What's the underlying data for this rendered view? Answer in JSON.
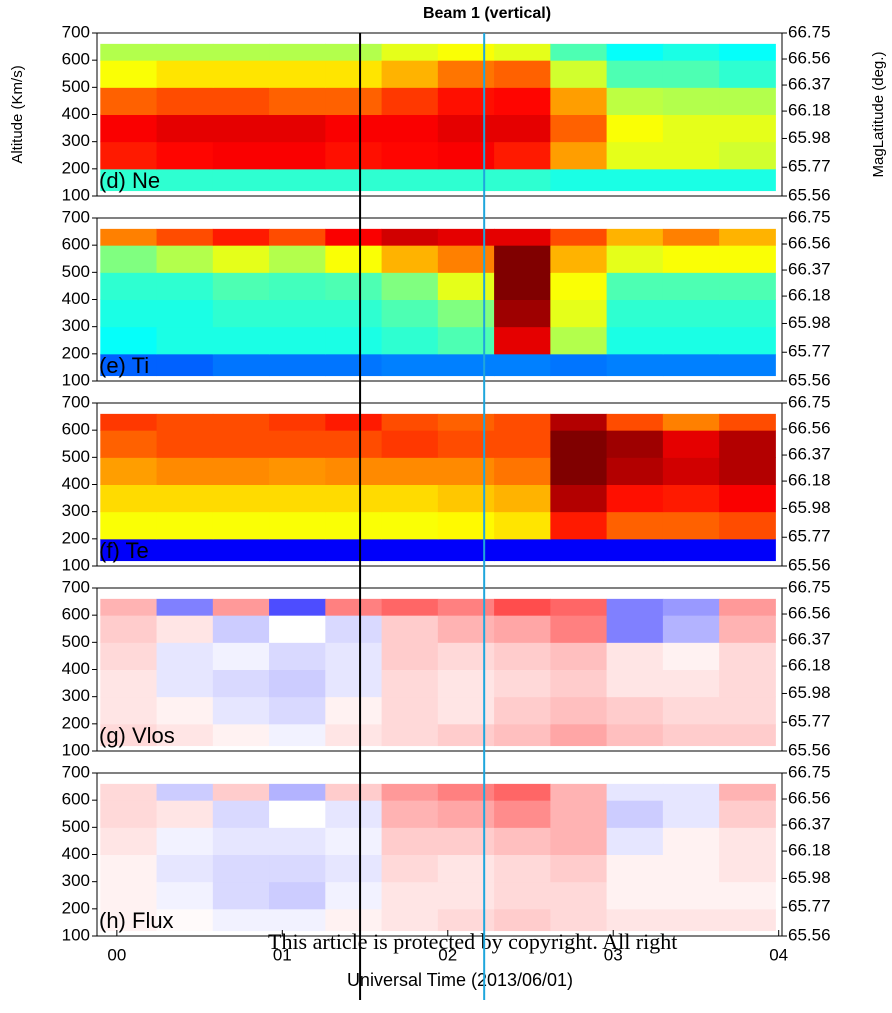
{
  "chart_data": [
    {
      "type": "heatmap",
      "title": "Beam 1 (vertical)",
      "label": "(d) Ne",
      "ylabel": "Altitude (Km/s)",
      "y2label": "MagLatitude (deg.)",
      "colormap": "jet",
      "zlim": [
        0,
        1
      ],
      "ylim": [
        100,
        700
      ],
      "yticks": [
        100,
        200,
        300,
        400,
        500,
        600,
        700
      ],
      "y2lim": [
        65.56,
        66.75
      ],
      "y2ticks": [
        65.56,
        65.77,
        65.98,
        66.18,
        66.37,
        66.56,
        66.75
      ],
      "xlim": [
        -0.12,
        4.02
      ],
      "xbins": [
        -0.1,
        0.24,
        0.58,
        0.92,
        1.26,
        1.6,
        1.94,
        2.28,
        2.62,
        2.96,
        3.3,
        3.64,
        3.98
      ],
      "ybins": [
        120,
        200,
        300,
        400,
        500,
        600,
        660
      ],
      "vlines": [
        {
          "x": 1.47,
          "color": "#000000"
        },
        {
          "x": 2.22,
          "color": "#1fa6dc"
        }
      ],
      "z": [
        [
          0.42,
          0.42,
          0.42,
          0.42,
          0.42,
          0.42,
          0.42,
          0.42,
          0.4,
          0.4,
          0.4,
          0.4
        ],
        [
          0.85,
          0.87,
          0.88,
          0.88,
          0.86,
          0.87,
          0.88,
          0.85,
          0.72,
          0.6,
          0.6,
          0.58
        ],
        [
          0.88,
          0.9,
          0.9,
          0.9,
          0.88,
          0.88,
          0.9,
          0.9,
          0.78,
          0.62,
          0.6,
          0.6
        ],
        [
          0.78,
          0.8,
          0.8,
          0.78,
          0.78,
          0.82,
          0.86,
          0.87,
          0.72,
          0.56,
          0.55,
          0.55
        ],
        [
          0.62,
          0.65,
          0.65,
          0.65,
          0.65,
          0.7,
          0.76,
          0.78,
          0.58,
          0.45,
          0.45,
          0.42
        ],
        [
          0.55,
          0.55,
          0.55,
          0.55,
          0.55,
          0.6,
          0.62,
          0.6,
          0.45,
          0.38,
          0.4,
          0.38
        ]
      ]
    },
    {
      "type": "heatmap",
      "label": "(e) Ti",
      "colormap": "jet",
      "zlim": [
        0,
        1
      ],
      "ylim": [
        100,
        700
      ],
      "yticks": [
        100,
        200,
        300,
        400,
        500,
        600,
        700
      ],
      "y2lim": [
        65.56,
        66.75
      ],
      "y2ticks": [
        65.56,
        65.77,
        65.98,
        66.18,
        66.37,
        66.56,
        66.75
      ],
      "xlim": [
        -0.12,
        4.02
      ],
      "xbins": [
        -0.1,
        0.24,
        0.58,
        0.92,
        1.26,
        1.6,
        1.94,
        2.28,
        2.62,
        2.96,
        3.3,
        3.64,
        3.98
      ],
      "ybins": [
        120,
        200,
        300,
        400,
        500,
        600,
        660
      ],
      "z": [
        [
          0.22,
          0.22,
          0.24,
          0.24,
          0.24,
          0.25,
          0.25,
          0.25,
          0.24,
          0.25,
          0.25,
          0.25
        ],
        [
          0.38,
          0.4,
          0.4,
          0.4,
          0.4,
          0.42,
          0.45,
          0.9,
          0.55,
          0.4,
          0.4,
          0.4
        ],
        [
          0.4,
          0.4,
          0.42,
          0.42,
          0.42,
          0.45,
          0.5,
          0.97,
          0.6,
          0.42,
          0.42,
          0.42
        ],
        [
          0.42,
          0.42,
          0.45,
          0.44,
          0.45,
          0.5,
          0.6,
          1.0,
          0.62,
          0.45,
          0.45,
          0.45
        ],
        [
          0.5,
          0.55,
          0.6,
          0.55,
          0.62,
          0.7,
          0.75,
          1.0,
          0.7,
          0.6,
          0.62,
          0.62
        ],
        [
          0.75,
          0.8,
          0.85,
          0.8,
          0.88,
          0.92,
          0.9,
          0.9,
          0.8,
          0.7,
          0.75,
          0.7
        ]
      ]
    },
    {
      "type": "heatmap",
      "label": "(f) Te",
      "colormap": "jet",
      "zlim": [
        0,
        1
      ],
      "ylim": [
        100,
        700
      ],
      "yticks": [
        100,
        200,
        300,
        400,
        500,
        600,
        700
      ],
      "y2lim": [
        65.56,
        66.75
      ],
      "y2ticks": [
        65.56,
        65.77,
        65.98,
        66.18,
        66.37,
        66.56,
        66.75
      ],
      "xlim": [
        -0.12,
        4.02
      ],
      "xbins": [
        -0.1,
        0.24,
        0.58,
        0.92,
        1.26,
        1.6,
        1.94,
        2.28,
        2.62,
        2.96,
        3.3,
        3.64,
        3.98
      ],
      "ybins": [
        120,
        200,
        300,
        400,
        500,
        600,
        660
      ],
      "z": [
        [
          0.12,
          0.12,
          0.12,
          0.12,
          0.12,
          0.12,
          0.12,
          0.12,
          0.12,
          0.12,
          0.12,
          0.12
        ],
        [
          0.62,
          0.62,
          0.62,
          0.62,
          0.62,
          0.62,
          0.63,
          0.65,
          0.85,
          0.78,
          0.78,
          0.8
        ],
        [
          0.66,
          0.66,
          0.66,
          0.66,
          0.66,
          0.66,
          0.68,
          0.7,
          0.95,
          0.86,
          0.85,
          0.88
        ],
        [
          0.72,
          0.74,
          0.74,
          0.73,
          0.74,
          0.74,
          0.74,
          0.76,
          1.0,
          0.95,
          0.92,
          0.95
        ],
        [
          0.78,
          0.8,
          0.8,
          0.8,
          0.8,
          0.82,
          0.8,
          0.8,
          1.0,
          0.97,
          0.9,
          0.95
        ],
        [
          0.82,
          0.8,
          0.8,
          0.82,
          0.85,
          0.8,
          0.78,
          0.8,
          0.95,
          0.8,
          0.75,
          0.8
        ]
      ]
    },
    {
      "type": "heatmap",
      "label": "(g) Vlos",
      "colormap": "bwr",
      "zlim": [
        -1,
        1
      ],
      "ylim": [
        100,
        700
      ],
      "yticks": [
        100,
        200,
        300,
        400,
        500,
        600,
        700
      ],
      "y2lim": [
        65.56,
        66.75
      ],
      "y2ticks": [
        65.56,
        65.77,
        65.98,
        66.18,
        66.37,
        66.56,
        66.75
      ],
      "xlim": [
        -0.12,
        4.02
      ],
      "xbins": [
        -0.1,
        0.24,
        0.58,
        0.92,
        1.26,
        1.6,
        1.94,
        2.28,
        2.62,
        2.96,
        3.3,
        3.64,
        3.98
      ],
      "ybins": [
        120,
        200,
        300,
        400,
        500,
        600,
        660
      ],
      "z": [
        [
          0.15,
          0.1,
          0.05,
          -0.05,
          0.1,
          0.15,
          0.2,
          0.25,
          0.35,
          0.25,
          0.2,
          0.2
        ],
        [
          0.1,
          0.05,
          -0.1,
          -0.15,
          0.05,
          0.15,
          0.1,
          0.2,
          0.25,
          0.2,
          0.15,
          0.15
        ],
        [
          0.1,
          -0.1,
          -0.15,
          -0.2,
          -0.1,
          0.15,
          0.1,
          0.15,
          0.2,
          0.1,
          0.1,
          0.15
        ],
        [
          0.15,
          -0.1,
          -0.05,
          -0.15,
          -0.1,
          0.2,
          0.15,
          0.2,
          0.25,
          0.1,
          0.05,
          0.15
        ],
        [
          0.2,
          0.1,
          -0.2,
          0,
          -0.15,
          0.2,
          0.3,
          0.35,
          0.5,
          -0.5,
          -0.3,
          0.3
        ],
        [
          0.3,
          -0.5,
          0.4,
          -0.7,
          0.5,
          0.6,
          0.5,
          0.7,
          0.6,
          -0.5,
          -0.4,
          0.4
        ]
      ]
    },
    {
      "type": "heatmap",
      "label": "(h) Flux",
      "colormap": "bwr",
      "zlim": [
        -1,
        1
      ],
      "ylim": [
        100,
        700
      ],
      "yticks": [
        100,
        200,
        300,
        400,
        500,
        600,
        700
      ],
      "y2lim": [
        65.56,
        66.75
      ],
      "y2ticks": [
        65.56,
        65.77,
        65.98,
        66.18,
        66.37,
        66.56,
        66.75
      ],
      "xlim": [
        -0.12,
        4.02
      ],
      "xbins": [
        -0.1,
        0.24,
        0.58,
        0.92,
        1.26,
        1.6,
        1.94,
        2.28,
        2.62,
        2.96,
        3.3,
        3.64,
        3.98
      ],
      "ybins": [
        120,
        200,
        300,
        400,
        500,
        600,
        660
      ],
      "xlabel": "Universal Time (2013/06/01)",
      "watermark": "This article is protected by copyright. All right",
      "xticks": [
        {
          "value": 0,
          "label": "00"
        },
        {
          "value": 1,
          "label": "01"
        },
        {
          "value": 2,
          "label": "02"
        },
        {
          "value": 3,
          "label": "03"
        },
        {
          "value": 4,
          "label": "04"
        }
      ],
      "z": [
        [
          0.05,
          0.02,
          -0.05,
          -0.05,
          0.05,
          0.1,
          0.15,
          0.2,
          0.15,
          0.1,
          0.1,
          0.1
        ],
        [
          0.05,
          -0.05,
          -0.15,
          -0.2,
          -0.05,
          0.1,
          0.1,
          0.15,
          0.15,
          0.05,
          0.05,
          0.05
        ],
        [
          0.05,
          -0.1,
          -0.15,
          -0.15,
          -0.1,
          0.15,
          0.1,
          0.15,
          0.2,
          0.05,
          0.05,
          0.1
        ],
        [
          0.1,
          -0.05,
          -0.1,
          -0.1,
          -0.05,
          0.2,
          0.2,
          0.25,
          0.3,
          -0.1,
          0.05,
          0.1
        ],
        [
          0.15,
          0.1,
          -0.15,
          0,
          -0.1,
          0.3,
          0.35,
          0.45,
          0.3,
          -0.2,
          -0.1,
          0.2
        ],
        [
          0.15,
          -0.2,
          0.2,
          -0.3,
          0.2,
          0.4,
          0.5,
          0.6,
          0.3,
          -0.1,
          -0.1,
          0.3
        ]
      ]
    }
  ]
}
